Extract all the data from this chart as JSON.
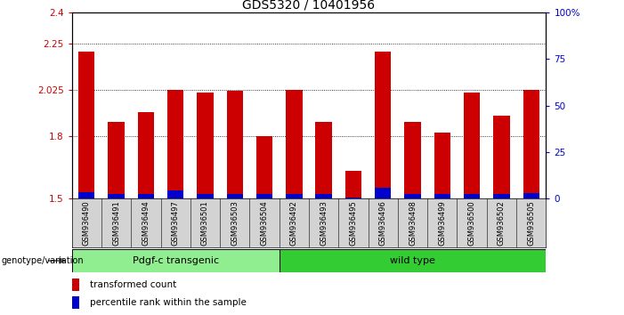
{
  "title": "GDS5320 / 10401956",
  "samples": [
    "GSM936490",
    "GSM936491",
    "GSM936494",
    "GSM936497",
    "GSM936501",
    "GSM936503",
    "GSM936504",
    "GSM936492",
    "GSM936493",
    "GSM936495",
    "GSM936496",
    "GSM936498",
    "GSM936499",
    "GSM936500",
    "GSM936502",
    "GSM936505"
  ],
  "red_values": [
    2.21,
    1.87,
    1.92,
    2.025,
    2.015,
    2.02,
    1.8,
    2.025,
    1.87,
    1.635,
    2.21,
    1.87,
    1.82,
    2.015,
    1.9,
    2.025
  ],
  "blue_values": [
    0.03,
    0.02,
    0.02,
    0.04,
    0.02,
    0.02,
    0.02,
    0.02,
    0.02,
    0.005,
    0.05,
    0.02,
    0.02,
    0.02,
    0.02,
    0.025
  ],
  "base": 1.5,
  "ymin": 1.5,
  "ymax": 2.4,
  "yticks": [
    1.5,
    1.8,
    2.025,
    2.25,
    2.4
  ],
  "ytick_labels": [
    "1.5",
    "1.8",
    "2.025",
    "2.25",
    "2.4"
  ],
  "right_yticks": [
    0,
    25,
    50,
    75,
    100
  ],
  "right_ytick_labels": [
    "0",
    "25",
    "50",
    "75",
    "100%"
  ],
  "red_color": "#cc0000",
  "blue_color": "#0000cc",
  "group1_label": "Pdgf-c transgenic",
  "group2_label": "wild type",
  "group1_color": "#90ee90",
  "group2_color": "#33cc33",
  "group1_count": 7,
  "group2_count": 9,
  "genotype_label": "genotype/variation",
  "legend1": "transformed count",
  "legend2": "percentile rank within the sample",
  "title_fontsize": 10,
  "tick_fontsize": 7.5,
  "label_fontsize": 8
}
